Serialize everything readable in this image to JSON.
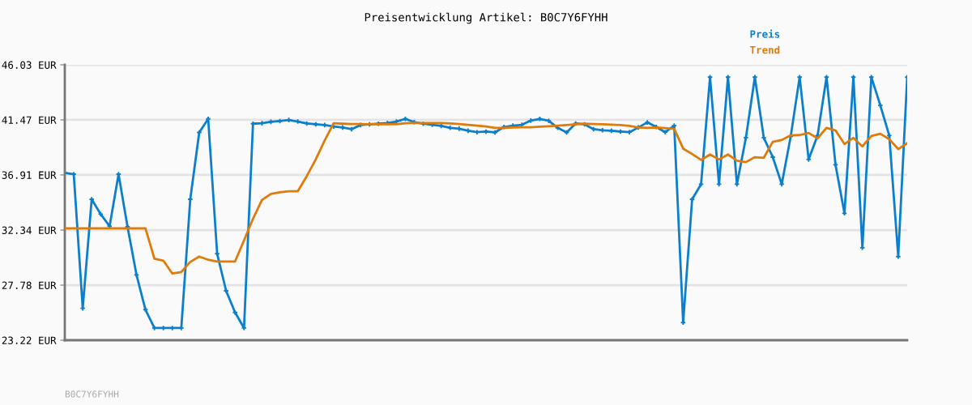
{
  "chart_data": {
    "type": "line",
    "title": "Preisentwicklung Artikel: B0C7Y6FYHH",
    "categories": [
      null,
      null,
      null,
      null,
      null,
      null,
      null,
      null,
      null,
      null,
      null,
      null,
      null,
      null,
      null,
      null,
      null,
      null,
      null,
      null,
      null,
      null,
      null,
      null,
      null,
      null,
      null,
      null,
      null,
      null,
      null,
      null,
      null,
      null,
      null,
      null,
      null,
      null,
      null,
      null,
      null,
      null,
      null,
      null,
      null,
      null,
      null,
      null,
      null,
      null,
      null,
      null,
      null,
      null,
      null,
      null,
      null,
      null,
      null,
      null,
      null,
      null,
      null,
      null,
      null,
      null,
      null,
      null,
      null,
      null,
      null,
      null,
      null,
      null,
      null,
      null,
      null,
      null,
      null,
      null,
      null,
      null,
      null,
      null,
      null,
      null,
      null,
      null,
      null,
      null,
      null,
      null,
      null,
      null,
      null
    ],
    "series": [
      {
        "name": "Preis",
        "color": "#0b7fcc",
        "marker": "cross",
        "values": [
          37.08,
          36.97,
          25.86,
          34.89,
          33.66,
          32.66,
          36.97,
          32.61,
          28.63,
          25.75,
          24.23,
          24.23,
          24.23,
          24.23,
          34.89,
          40.43,
          41.55,
          30.38,
          27.31,
          25.52,
          24.23,
          41.15,
          41.19,
          41.31,
          41.37,
          41.46,
          41.33,
          41.17,
          41.1,
          41.04,
          40.92,
          40.84,
          40.7,
          41.04,
          41.1,
          41.15,
          41.21,
          41.33,
          41.55,
          41.28,
          41.15,
          41.06,
          40.97,
          40.81,
          40.74,
          40.57,
          40.45,
          40.5,
          40.43,
          40.88,
          40.99,
          41.06,
          41.41,
          41.55,
          41.39,
          40.81,
          40.43,
          41.17,
          41.1,
          40.7,
          40.61,
          40.57,
          40.5,
          40.45,
          40.84,
          41.26,
          40.88,
          40.45,
          40.99,
          24.68,
          34.89,
          36.14,
          45.01,
          36.14,
          45.01,
          36.14,
          39.98,
          45.01,
          39.98,
          38.38,
          36.14,
          40.1,
          45.01,
          38.19,
          40.17,
          45.01,
          37.75,
          33.73,
          45.01,
          30.88,
          45.01,
          42.67,
          40.17,
          30.15,
          45.01
        ]
      },
      {
        "name": "Trend",
        "color": "#e07b0a",
        "marker": "none",
        "values": [
          32.49,
          32.49,
          32.49,
          32.49,
          32.49,
          32.49,
          32.49,
          32.49,
          32.49,
          32.49,
          29.97,
          29.81,
          28.74,
          28.87,
          29.7,
          30.15,
          29.88,
          29.74,
          29.74,
          29.74,
          31.49,
          33.28,
          34.84,
          35.34,
          35.47,
          35.56,
          35.56,
          36.81,
          38.19,
          39.76,
          41.19,
          41.15,
          41.12,
          41.12,
          41.1,
          41.1,
          41.1,
          41.1,
          41.19,
          41.21,
          41.21,
          41.21,
          41.21,
          41.17,
          41.13,
          41.06,
          40.99,
          40.92,
          40.81,
          40.81,
          40.84,
          40.86,
          40.86,
          40.9,
          40.94,
          40.99,
          41.04,
          41.1,
          41.15,
          41.13,
          41.1,
          41.08,
          41.04,
          40.97,
          40.84,
          40.81,
          40.84,
          40.79,
          40.72,
          39.09,
          38.64,
          38.15,
          38.6,
          38.19,
          38.6,
          38.09,
          37.97,
          38.38,
          38.33,
          39.65,
          39.8,
          40.19,
          40.21,
          40.39,
          39.94,
          40.81,
          40.59,
          39.47,
          39.98,
          39.27,
          40.14,
          40.32,
          39.87,
          39.05,
          39.54
        ]
      }
    ],
    "ylim": [
      23.22,
      46.03
    ],
    "yticks": [
      {
        "value": 23.22,
        "label": "23.22 EUR"
      },
      {
        "value": 27.78,
        "label": "27.78 EUR"
      },
      {
        "value": 32.34,
        "label": "32.34 EUR"
      },
      {
        "value": 36.91,
        "label": "36.91 EUR"
      },
      {
        "value": 41.47,
        "label": "41.47 EUR"
      },
      {
        "value": 46.03,
        "label": "46.03 EUR"
      }
    ],
    "grid": "y",
    "legend": "top right",
    "line_style": "solid",
    "annotations": [
      "B0C7Y6FYHH"
    ]
  }
}
